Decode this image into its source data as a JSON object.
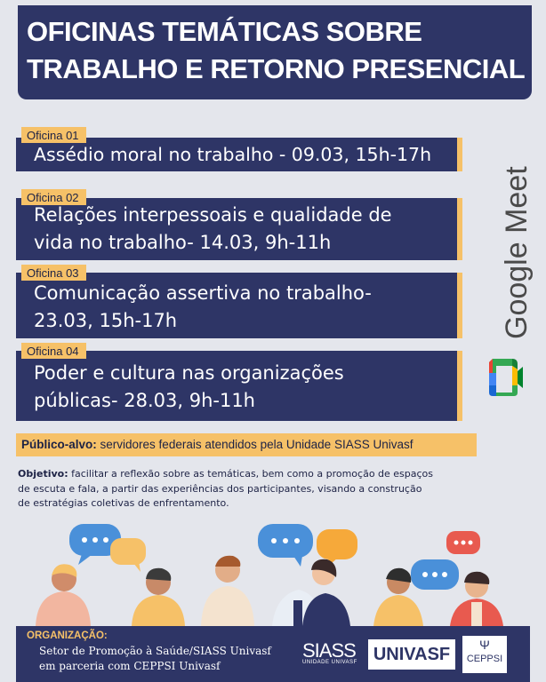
{
  "title": {
    "line1": "OFICINAS TEMÁTICAS SOBRE",
    "line2": "TRABALHO E RETORNO PRESENCIAL"
  },
  "workshops": [
    {
      "tag": "Oficina 01",
      "line1": "Assédio moral no trabalho - 09.03, 15h-17h",
      "line2": ""
    },
    {
      "tag": "Oficina 02",
      "line1": "Relações interpessoais e qualidade de",
      "line2": "vida no trabalho- 14.03, 9h-11h"
    },
    {
      "tag": "Oficina 03",
      "line1": "Comunicação assertiva no trabalho-",
      "line2": "23.03, 15h-17h"
    },
    {
      "tag": "Oficina 04",
      "line1": "Poder e cultura nas organizações",
      "line2": "públicas- 28.03, 9h-11h"
    }
  ],
  "platform": {
    "name": "Google Meet",
    "icon": "google-meet-icon"
  },
  "audience": {
    "label": "Público-alvo:",
    "text": "servidores federais atendidos pela Unidade SIASS Univasf"
  },
  "objective": {
    "label": "Objetivo:",
    "line1": "facilitar a reflexão sobre as temáticas, bem como a promoção de espaços",
    "line2": "de escuta e fala, a partir das experiências dos participantes, visando a construção",
    "line3": "de estratégias coletivas de enfrentamento."
  },
  "organization": {
    "label": "ORGANIZAÇÃO:",
    "line1": "Setor de Promoção à Saúde/SIASS Univasf",
    "line2": "em parceria com CEPPSI Univasf"
  },
  "logos": {
    "siass": "SIASS",
    "siass_sub": "UNIDADE UNIVASF",
    "univasf": "UNIVASF",
    "ceppsi": "CEPPSI"
  },
  "colors": {
    "navy": "#2e3566",
    "accent": "#f6c168",
    "background": "#e4e6ec"
  }
}
